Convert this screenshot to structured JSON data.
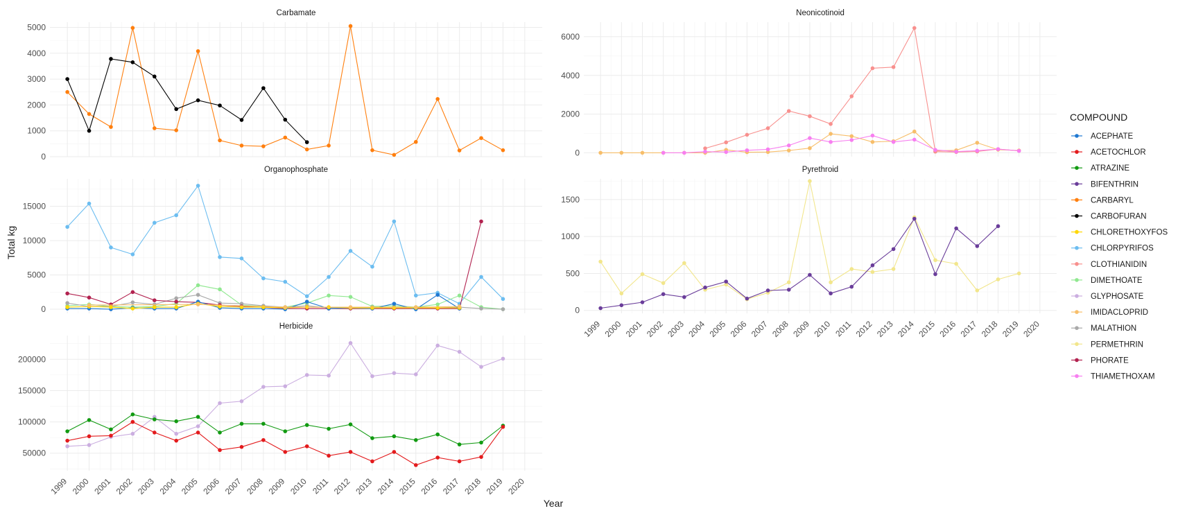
{
  "xlabel": "Year",
  "ylabel": "Total kg",
  "legend": {
    "title": "COMPOUND",
    "placement": "right",
    "items": [
      {
        "name": "ACEPHATE",
        "color": "#1f78d1"
      },
      {
        "name": "ACETOCHLOR",
        "color": "#e31a1c"
      },
      {
        "name": "ATRAZINE",
        "color": "#119a11"
      },
      {
        "name": "BIFENTHRIN",
        "color": "#6a3d9a"
      },
      {
        "name": "CARBARYL",
        "color": "#ff7f0e"
      },
      {
        "name": "CARBOFURAN",
        "color": "#000000"
      },
      {
        "name": "CHLORETHOXYFOS",
        "color": "#ffd700"
      },
      {
        "name": "CHLORPYRIFOS",
        "color": "#6cbdf0"
      },
      {
        "name": "CLOTHIANIDIN",
        "color": "#f8908e"
      },
      {
        "name": "DIMETHOATE",
        "color": "#90e890"
      },
      {
        "name": "GLYPHOSATE",
        "color": "#cbaee0"
      },
      {
        "name": "IMIDACLOPRID",
        "color": "#f7be6a"
      },
      {
        "name": "MALATHION",
        "color": "#a9a9a9"
      },
      {
        "name": "PERMETHRIN",
        "color": "#f2e68c"
      },
      {
        "name": "PHORATE",
        "color": "#b2224f"
      },
      {
        "name": "THIAMETHOXAM",
        "color": "#f77ff0"
      }
    ]
  },
  "chart_data": [
    {
      "type": "line",
      "title": "Carbamate",
      "ylim": [
        0,
        5200
      ],
      "yticks": [
        0,
        1000,
        2000,
        3000,
        4000,
        5000
      ],
      "xticks": [
        1999,
        2000,
        2001,
        2002,
        2003,
        2004,
        2005,
        2006,
        2007,
        2008,
        2009,
        2010,
        2011,
        2012,
        2013,
        2014,
        2015,
        2016,
        2017,
        2018,
        2019,
        2020
      ],
      "show_xtick_labels": false,
      "series": [
        {
          "name": "CARBARYL",
          "x": [
            1999,
            2000,
            2001,
            2002,
            2003,
            2004,
            2005,
            2006,
            2007,
            2008,
            2009,
            2010,
            2011,
            2012,
            2013,
            2014,
            2015,
            2016,
            2017,
            2018,
            2019
          ],
          "y": [
            2500,
            1650,
            1150,
            4980,
            1100,
            1020,
            4080,
            630,
            430,
            400,
            740,
            280,
            430,
            5050,
            250,
            70,
            570,
            2230,
            240,
            720,
            250
          ]
        },
        {
          "name": "CARBOFURAN",
          "x": [
            1999,
            2000,
            2001,
            2002,
            2003,
            2004,
            2005,
            2006,
            2007,
            2008,
            2009,
            2010
          ],
          "y": [
            3000,
            1000,
            3780,
            3650,
            3100,
            1840,
            2180,
            1980,
            1420,
            2650,
            1430,
            560
          ]
        }
      ]
    },
    {
      "type": "line",
      "title": "Neonicotinoid",
      "ylim": [
        -200,
        6750
      ],
      "yticks": [
        0,
        2000,
        4000,
        6000
      ],
      "xticks": [
        1999,
        2000,
        2001,
        2002,
        2003,
        2004,
        2005,
        2006,
        2007,
        2008,
        2009,
        2010,
        2011,
        2012,
        2013,
        2014,
        2015,
        2016,
        2017,
        2018,
        2019,
        2020
      ],
      "show_xtick_labels": false,
      "series": [
        {
          "name": "IMIDACLOPRID",
          "x": [
            1999,
            2000,
            2001,
            2002,
            2003,
            2004,
            2005,
            2006,
            2007,
            2008,
            2009,
            2010,
            2011,
            2012,
            2013,
            2014,
            2015,
            2016,
            2017,
            2018,
            2019
          ],
          "y": [
            0,
            0,
            0,
            0,
            0,
            0,
            150,
            30,
            40,
            120,
            240,
            980,
            860,
            560,
            600,
            1100,
            100,
            130,
            520,
            160,
            120
          ]
        },
        {
          "name": "CLOTHIANIDIN",
          "x": [
            2004,
            2005,
            2006,
            2007,
            2008,
            2009,
            2010,
            2011,
            2012,
            2013,
            2014,
            2015,
            2016,
            2017,
            2018,
            2019
          ],
          "y": [
            230,
            540,
            930,
            1270,
            2160,
            1890,
            1490,
            2920,
            4370,
            4430,
            6450,
            60,
            40,
            70,
            190,
            100
          ]
        },
        {
          "name": "THIAMETHOXAM",
          "x": [
            2002,
            2003,
            2004,
            2005,
            2006,
            2007,
            2008,
            2009,
            2010,
            2011,
            2012,
            2013,
            2014,
            2015,
            2016,
            2017,
            2018,
            2019
          ],
          "y": [
            0,
            0,
            60,
            40,
            130,
            180,
            380,
            760,
            560,
            660,
            890,
            560,
            680,
            150,
            60,
            110,
            190,
            100
          ]
        }
      ]
    },
    {
      "type": "line",
      "title": "Organophosphate",
      "ylim": [
        -600,
        19000
      ],
      "yticks": [
        0,
        5000,
        10000,
        15000
      ],
      "xticks": [
        1999,
        2000,
        2001,
        2002,
        2003,
        2004,
        2005,
        2006,
        2007,
        2008,
        2009,
        2010,
        2011,
        2012,
        2013,
        2014,
        2015,
        2016,
        2017,
        2018,
        2019,
        2020
      ],
      "show_xtick_labels": false,
      "series": [
        {
          "name": "CHLORPYRIFOS",
          "x": [
            1999,
            2000,
            2001,
            2002,
            2003,
            2004,
            2005,
            2006,
            2007,
            2008,
            2009,
            2010,
            2011,
            2012,
            2013,
            2014,
            2015,
            2016,
            2017,
            2018,
            2019
          ],
          "y": [
            12000,
            15400,
            9000,
            8000,
            12600,
            13700,
            18000,
            7600,
            7400,
            4500,
            4000,
            1900,
            4700,
            8500,
            6200,
            12800,
            2000,
            2400,
            800,
            4700,
            1500
          ]
        },
        {
          "name": "DIMETHOATE",
          "x": [
            1999,
            2000,
            2001,
            2002,
            2003,
            2004,
            2005,
            2006,
            2007,
            2008,
            2009,
            2010,
            2011,
            2012,
            2013,
            2014,
            2015,
            2016,
            2017,
            2018,
            2019
          ],
          "y": [
            500,
            700,
            400,
            300,
            400,
            800,
            3500,
            2900,
            600,
            400,
            300,
            900,
            2000,
            1800,
            400,
            500,
            300,
            700,
            2000,
            300,
            0
          ]
        },
        {
          "name": "MALATHION",
          "x": [
            1999,
            2000,
            2001,
            2002,
            2003,
            2004,
            2005,
            2006,
            2007,
            2008,
            2009,
            2010,
            2011,
            2012,
            2013,
            2014,
            2015,
            2016,
            2017,
            2018,
            2019
          ],
          "y": [
            900,
            400,
            400,
            1000,
            700,
            1600,
            2100,
            900,
            800,
            500,
            300,
            500,
            200,
            200,
            300,
            300,
            200,
            200,
            300,
            100,
            0
          ]
        },
        {
          "name": "PHORATE",
          "x": [
            1999,
            2000,
            2001,
            2002,
            2003,
            2004,
            2005,
            2006,
            2007,
            2008,
            2009,
            2010,
            2011,
            2012,
            2013,
            2014,
            2015,
            2016,
            2017,
            2018
          ],
          "y": [
            2300,
            1700,
            700,
            2500,
            1300,
            1100,
            1000,
            600,
            400,
            300,
            100,
            100,
            100,
            100,
            100,
            100,
            100,
            100,
            100,
            12800
          ]
        },
        {
          "name": "ACEPHATE",
          "x": [
            1999,
            2000,
            2001,
            2002,
            2003,
            2004,
            2005,
            2006,
            2007,
            2008,
            2009,
            2010,
            2011,
            2012,
            2013,
            2014,
            2015,
            2016,
            2017
          ],
          "y": [
            100,
            100,
            0,
            200,
            100,
            100,
            1100,
            200,
            100,
            100,
            0,
            1100,
            100,
            200,
            100,
            800,
            0,
            2100,
            100
          ]
        },
        {
          "name": "CHLORETHOXYFOS",
          "x": [
            1999,
            2000,
            2001,
            2002,
            2003,
            2004,
            2005,
            2006,
            2007,
            2008,
            2009,
            2010,
            2011,
            2012,
            2013,
            2014,
            2015,
            2016,
            2017
          ],
          "y": [
            300,
            400,
            300,
            100,
            300,
            300,
            800,
            400,
            300,
            300,
            200,
            300,
            300,
            200,
            200,
            200,
            200,
            200,
            200
          ]
        },
        {
          "name": "IMIDACLOPRID",
          "x": [
            2000,
            2005,
            2009,
            2012,
            2015,
            2017
          ],
          "y": [
            600,
            700,
            300,
            300,
            300,
            400
          ]
        }
      ]
    },
    {
      "type": "line",
      "title": "Pyrethroid",
      "ylim": [
        -40,
        1780
      ],
      "yticks": [
        0,
        500,
        1000,
        1500
      ],
      "xticks": [
        1999,
        2000,
        2001,
        2002,
        2003,
        2004,
        2005,
        2006,
        2007,
        2008,
        2009,
        2010,
        2011,
        2012,
        2013,
        2014,
        2015,
        2016,
        2017,
        2018,
        2019,
        2020
      ],
      "show_xtick_labels": true,
      "series": [
        {
          "name": "PERMETHRIN",
          "x": [
            1999,
            2000,
            2001,
            2002,
            2003,
            2004,
            2005,
            2006,
            2007,
            2008,
            2009,
            2010,
            2011,
            2012,
            2013,
            2014,
            2015,
            2016,
            2017,
            2018,
            2019
          ],
          "y": [
            660,
            230,
            490,
            370,
            640,
            280,
            350,
            150,
            240,
            380,
            1750,
            380,
            560,
            520,
            560,
            1260,
            680,
            630,
            270,
            420,
            500
          ]
        },
        {
          "name": "BIFENTHRIN",
          "x": [
            1999,
            2000,
            2001,
            2002,
            2003,
            2004,
            2005,
            2006,
            2007,
            2008,
            2009,
            2010,
            2011,
            2012,
            2013,
            2014,
            2015,
            2016,
            2017,
            2018
          ],
          "y": [
            30,
            70,
            110,
            220,
            180,
            310,
            390,
            160,
            270,
            280,
            480,
            230,
            320,
            610,
            830,
            1240,
            490,
            1110,
            870,
            1140
          ]
        }
      ]
    },
    {
      "type": "line",
      "title": "Herbicide",
      "ylim": [
        22000,
        238000
      ],
      "yticks": [
        50000,
        100000,
        150000,
        200000
      ],
      "xticks": [
        1999,
        2000,
        2001,
        2002,
        2003,
        2004,
        2005,
        2006,
        2007,
        2008,
        2009,
        2010,
        2011,
        2012,
        2013,
        2014,
        2015,
        2016,
        2017,
        2018,
        2019,
        2020
      ],
      "show_xtick_labels": true,
      "series": [
        {
          "name": "GLYPHOSATE",
          "x": [
            1999,
            2000,
            2001,
            2002,
            2003,
            2004,
            2005,
            2006,
            2007,
            2008,
            2009,
            2010,
            2011,
            2012,
            2013,
            2014,
            2015,
            2016,
            2017,
            2018,
            2019
          ],
          "y": [
            61000,
            63000,
            76000,
            81000,
            108000,
            81000,
            93000,
            130000,
            133000,
            156000,
            157000,
            175000,
            174000,
            226000,
            173000,
            178000,
            176000,
            222000,
            212000,
            188000,
            201000
          ]
        },
        {
          "name": "ATRAZINE",
          "x": [
            1999,
            2000,
            2001,
            2002,
            2003,
            2004,
            2005,
            2006,
            2007,
            2008,
            2009,
            2010,
            2011,
            2012,
            2013,
            2014,
            2015,
            2016,
            2017,
            2018,
            2019
          ],
          "y": [
            85000,
            103000,
            88000,
            112000,
            104000,
            101000,
            108000,
            83000,
            97000,
            97000,
            85000,
            95000,
            89000,
            96000,
            74000,
            77000,
            71000,
            80000,
            64000,
            67000,
            94000
          ]
        },
        {
          "name": "ACETOCHLOR",
          "x": [
            1999,
            2000,
            2001,
            2002,
            2003,
            2004,
            2005,
            2006,
            2007,
            2008,
            2009,
            2010,
            2011,
            2012,
            2013,
            2014,
            2015,
            2016,
            2017,
            2018,
            2019
          ],
          "y": [
            70000,
            77000,
            78000,
            100000,
            83000,
            70000,
            83000,
            55000,
            60000,
            71000,
            52000,
            61000,
            46000,
            52000,
            37000,
            52000,
            31000,
            43000,
            37000,
            44000,
            92000
          ]
        }
      ]
    }
  ]
}
